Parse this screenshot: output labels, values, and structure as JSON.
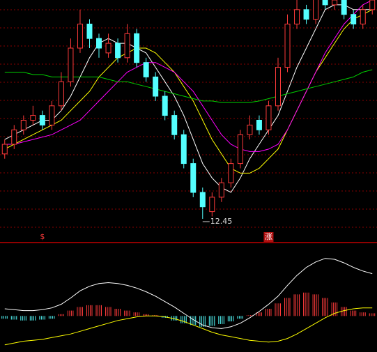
{
  "chart_data": [
    {
      "type": "candlestick",
      "up_color": "#ff3b3b",
      "down_color": "#54ffff",
      "ylim": [
        12.0,
        17.0
      ],
      "open": [
        13.8,
        14.0,
        14.3,
        14.5,
        14.6,
        14.4,
        14.8,
        15.3,
        16.0,
        16.5,
        16.2,
        15.9,
        16.1,
        15.8,
        16.3,
        15.7,
        15.4,
        15.0,
        14.6,
        14.2,
        13.6,
        13.0,
        12.6,
        12.9,
        13.2,
        13.6,
        14.2,
        14.5,
        14.3,
        14.8,
        15.6,
        16.5,
        16.8,
        16.6,
        17.1,
        16.9,
        17.0,
        16.7,
        16.5,
        16.8
      ],
      "high": [
        14.1,
        14.4,
        14.6,
        14.8,
        14.7,
        14.9,
        15.5,
        16.2,
        16.8,
        16.6,
        16.3,
        16.3,
        16.2,
        16.5,
        16.4,
        15.8,
        15.5,
        15.1,
        14.7,
        14.3,
        13.7,
        13.1,
        13.0,
        13.3,
        13.7,
        14.3,
        14.6,
        14.6,
        14.9,
        15.8,
        16.7,
        17.0,
        16.9,
        17.3,
        17.2,
        17.1,
        17.1,
        16.8,
        16.9,
        17.2
      ],
      "low": [
        13.7,
        13.9,
        14.2,
        14.4,
        14.3,
        14.3,
        14.7,
        15.2,
        15.9,
        16.0,
        15.8,
        15.8,
        15.7,
        15.7,
        15.6,
        15.3,
        14.9,
        14.5,
        14.1,
        13.5,
        12.9,
        12.45,
        12.5,
        12.8,
        13.1,
        13.5,
        14.1,
        14.2,
        14.2,
        14.7,
        15.5,
        16.4,
        16.5,
        16.5,
        16.8,
        16.8,
        16.6,
        16.4,
        16.4,
        16.7
      ],
      "close": [
        14.0,
        14.3,
        14.5,
        14.6,
        14.4,
        14.8,
        15.3,
        16.0,
        16.5,
        16.2,
        16.0,
        16.1,
        15.8,
        16.3,
        15.7,
        15.4,
        15.0,
        14.6,
        14.2,
        13.6,
        13.0,
        12.7,
        12.9,
        13.2,
        13.6,
        14.2,
        14.4,
        14.3,
        14.8,
        15.6,
        16.5,
        16.8,
        16.6,
        17.1,
        16.9,
        17.0,
        16.7,
        16.5,
        16.8,
        17.0
      ],
      "lines": [
        {
          "color": "#ffffff",
          "values": [
            14.1,
            14.2,
            14.3,
            14.4,
            14.5,
            14.5,
            14.7,
            15.0,
            15.4,
            15.8,
            16.1,
            16.2,
            16.1,
            16.1,
            16.0,
            15.9,
            15.6,
            15.3,
            15.0,
            14.6,
            14.1,
            13.6,
            13.3,
            13.1,
            13.0,
            13.3,
            13.7,
            14.0,
            14.3,
            14.6,
            15.1,
            15.6,
            16.0,
            16.4,
            16.8,
            16.9,
            16.9,
            16.8,
            16.8,
            16.8
          ]
        },
        {
          "color": "#ffff00",
          "values": [
            13.9,
            14.0,
            14.1,
            14.2,
            14.3,
            14.4,
            14.5,
            14.7,
            14.9,
            15.1,
            15.4,
            15.6,
            15.8,
            15.9,
            16.0,
            16.0,
            15.9,
            15.7,
            15.5,
            15.2,
            14.9,
            14.5,
            14.1,
            13.8,
            13.5,
            13.4,
            13.4,
            13.5,
            13.7,
            13.9,
            14.3,
            14.7,
            15.1,
            15.5,
            15.8,
            16.1,
            16.4,
            16.6,
            16.7,
            16.8
          ]
        },
        {
          "color": "#ff00ff",
          "values": [
            14.0,
            14.0,
            14.05,
            14.1,
            14.15,
            14.2,
            14.3,
            14.4,
            14.5,
            14.7,
            14.9,
            15.1,
            15.3,
            15.5,
            15.6,
            15.7,
            15.7,
            15.6,
            15.5,
            15.3,
            15.1,
            14.8,
            14.5,
            14.2,
            14.0,
            13.9,
            13.85,
            13.85,
            13.9,
            14.0,
            14.3,
            14.7,
            15.1,
            15.5,
            15.9,
            16.2,
            16.5,
            16.7,
            16.9,
            17.0
          ]
        },
        {
          "color": "#00d000",
          "values": [
            15.5,
            15.5,
            15.5,
            15.45,
            15.45,
            15.4,
            15.4,
            15.4,
            15.4,
            15.4,
            15.4,
            15.35,
            15.3,
            15.3,
            15.25,
            15.2,
            15.15,
            15.1,
            15.05,
            15.0,
            14.95,
            14.9,
            14.9,
            14.87,
            14.87,
            14.87,
            14.87,
            14.9,
            14.95,
            15.0,
            15.05,
            15.1,
            15.15,
            15.2,
            15.25,
            15.3,
            15.35,
            15.4,
            15.5,
            15.55
          ]
        }
      ],
      "low_annotation": {
        "index": 21,
        "text": "12.45"
      },
      "signals": [
        {
          "index": 4,
          "label": "$",
          "color": "#ff3b3b"
        },
        {
          "index": 28,
          "label": "涨",
          "color": "#ffffff"
        }
      ]
    },
    {
      "type": "macd",
      "ylim": [
        -0.4,
        0.8
      ],
      "up_color": "#ff3b3b",
      "down_color": "#54ffff",
      "histogram": [
        -0.03,
        -0.04,
        -0.05,
        -0.05,
        -0.04,
        -0.03,
        0.02,
        0.06,
        0.1,
        0.12,
        0.12,
        0.1,
        0.08,
        0.06,
        0.04,
        0.02,
        0.01,
        -0.02,
        -0.05,
        -0.08,
        -0.1,
        -0.12,
        -0.11,
        -0.09,
        -0.06,
        -0.03,
        0.01,
        0.04,
        0.08,
        0.14,
        0.2,
        0.24,
        0.26,
        0.24,
        0.2,
        0.15,
        0.1,
        0.06,
        0.04,
        0.03
      ],
      "lines": [
        {
          "color": "#ffffff",
          "values": [
            0.08,
            0.07,
            0.06,
            0.06,
            0.07,
            0.09,
            0.13,
            0.2,
            0.28,
            0.33,
            0.36,
            0.37,
            0.36,
            0.34,
            0.31,
            0.27,
            0.22,
            0.16,
            0.1,
            0.03,
            -0.04,
            -0.1,
            -0.13,
            -0.14,
            -0.12,
            -0.08,
            -0.02,
            0.05,
            0.13,
            0.22,
            0.34,
            0.45,
            0.54,
            0.6,
            0.64,
            0.63,
            0.59,
            0.54,
            0.5,
            0.47
          ]
        },
        {
          "color": "#ffff00",
          "values": [
            -0.32,
            -0.3,
            -0.28,
            -0.27,
            -0.26,
            -0.24,
            -0.22,
            -0.2,
            -0.17,
            -0.14,
            -0.11,
            -0.08,
            -0.05,
            -0.03,
            -0.01,
            0.0,
            0.0,
            -0.01,
            -0.03,
            -0.06,
            -0.1,
            -0.14,
            -0.18,
            -0.21,
            -0.23,
            -0.25,
            -0.27,
            -0.28,
            -0.29,
            -0.28,
            -0.25,
            -0.2,
            -0.14,
            -0.08,
            -0.02,
            0.03,
            0.06,
            0.08,
            0.09,
            0.09
          ]
        }
      ]
    }
  ]
}
